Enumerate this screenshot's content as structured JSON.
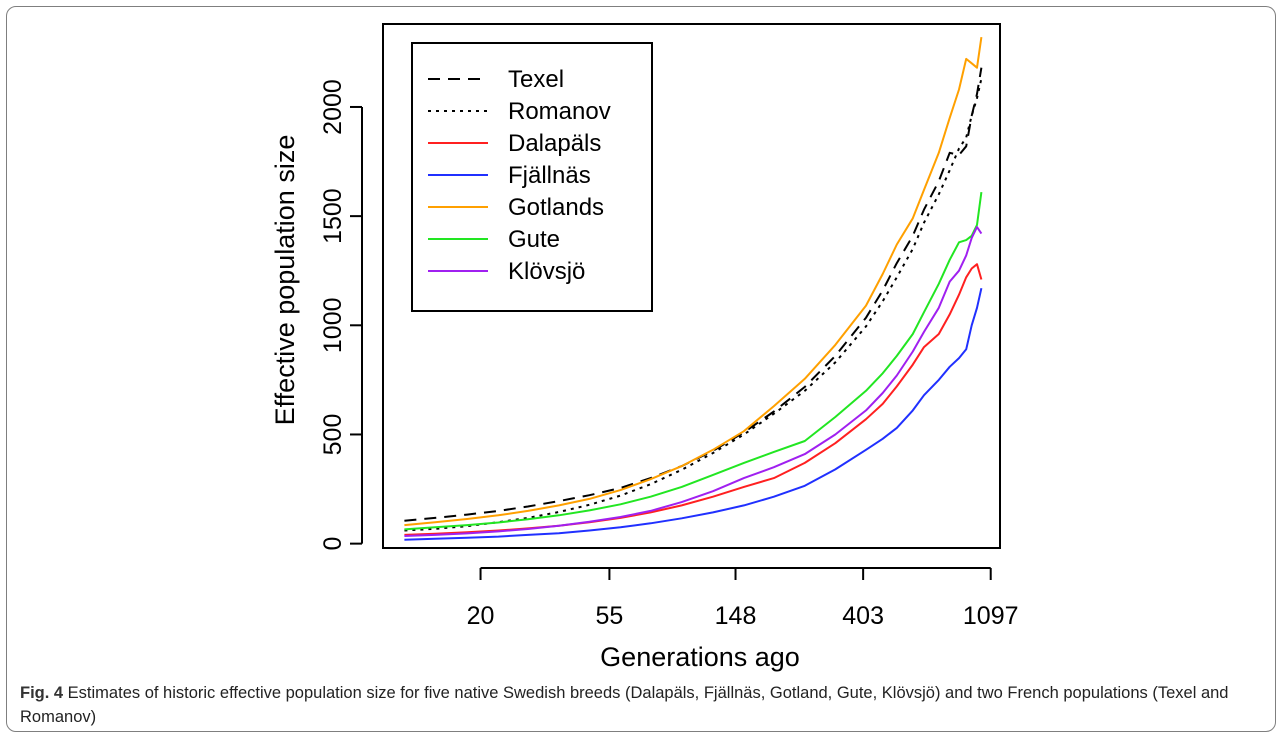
{
  "chart_data": {
    "type": "line",
    "xlabel": "Generations ago",
    "ylabel": "Effective population size",
    "x_scale": "log",
    "x_ticks": [
      20,
      55,
      148,
      403,
      1097
    ],
    "x_tick_labels": [
      "20",
      "55",
      "148",
      "403",
      "1097"
    ],
    "x_range": [
      9.3,
      1180
    ],
    "y_ticks": [
      0,
      500,
      1000,
      1500,
      2000
    ],
    "y_tick_labels": [
      "0",
      "500",
      "1000",
      "1500",
      "2000"
    ],
    "ylim": [
      -20,
      2380
    ],
    "legend_position": "top-left",
    "grid": false,
    "x": [
      11,
      14,
      18,
      23,
      29,
      37,
      47,
      60,
      76,
      97,
      124,
      158,
      200,
      255,
      324,
      412,
      470,
      525,
      595,
      650,
      730,
      795,
      855,
      905,
      945,
      985,
      1020
    ],
    "series": [
      {
        "name": "Texel",
        "color": "#000000",
        "dash": "dashed",
        "values": [
          105,
          118,
          133,
          150,
          170,
          195,
          222,
          255,
          300,
          355,
          425,
          510,
          605,
          718,
          860,
          1035,
          1160,
          1285,
          1410,
          1530,
          1660,
          1790,
          1780,
          1820,
          1960,
          2060,
          2180
        ]
      },
      {
        "name": "Romanov",
        "color": "#000000",
        "dash": "dotted",
        "values": [
          60,
          68,
          80,
          98,
          118,
          145,
          178,
          220,
          272,
          338,
          415,
          500,
          595,
          700,
          830,
          995,
          1110,
          1220,
          1350,
          1470,
          1600,
          1710,
          1810,
          1860,
          1960,
          2040,
          2130
        ]
      },
      {
        "name": "Dalapäls",
        "color": "#ff2020",
        "dash": "solid",
        "values": [
          40,
          45,
          52,
          60,
          70,
          82,
          98,
          118,
          143,
          175,
          215,
          260,
          300,
          370,
          460,
          570,
          640,
          720,
          820,
          900,
          960,
          1050,
          1140,
          1220,
          1260,
          1280,
          1210
        ]
      },
      {
        "name": "Fjällnäs",
        "color": "#2030ff",
        "dash": "solid",
        "values": [
          18,
          22,
          27,
          32,
          40,
          48,
          60,
          75,
          93,
          116,
          143,
          175,
          215,
          265,
          340,
          430,
          480,
          530,
          610,
          680,
          750,
          810,
          850,
          890,
          1000,
          1080,
          1170
        ]
      },
      {
        "name": "Gotlands",
        "color": "#ffa000",
        "dash": "solid",
        "values": [
          85,
          98,
          113,
          130,
          150,
          175,
          205,
          245,
          295,
          355,
          430,
          515,
          630,
          755,
          910,
          1090,
          1235,
          1370,
          1490,
          1620,
          1790,
          1950,
          2080,
          2220,
          2200,
          2180,
          2320
        ]
      },
      {
        "name": "Gute",
        "color": "#22e622",
        "dash": "solid",
        "values": [
          65,
          75,
          85,
          97,
          112,
          130,
          152,
          180,
          215,
          260,
          315,
          370,
          420,
          470,
          580,
          700,
          780,
          860,
          960,
          1060,
          1190,
          1300,
          1380,
          1390,
          1410,
          1460,
          1610
        ]
      },
      {
        "name": "Klövsjö",
        "color": "#a020f0",
        "dash": "solid",
        "values": [
          35,
          40,
          47,
          56,
          67,
          82,
          100,
          122,
          150,
          190,
          240,
          300,
          350,
          410,
          500,
          610,
          690,
          770,
          880,
          970,
          1080,
          1200,
          1250,
          1320,
          1400,
          1450,
          1420
        ]
      }
    ]
  },
  "caption": {
    "label": "Fig. 4",
    "text": " Estimates of historic effective population size for five native Swedish breeds (Dalapäls, Fjällnäs, Gotland, Gute, Klövsjö) and two French populations (Texel and Romanov)"
  }
}
